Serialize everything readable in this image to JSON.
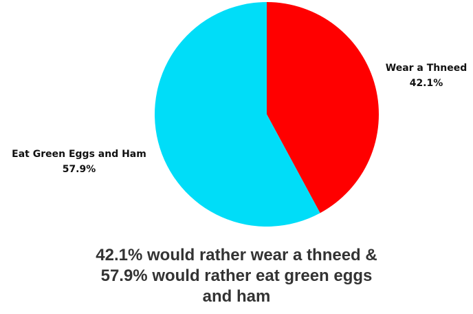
{
  "chart_data": {
    "type": "pie",
    "title": "",
    "slices": [
      {
        "label": "Wear a Thneed",
        "value": 42.1,
        "value_label": "42.1%",
        "color": "#ff0000"
      },
      {
        "label": "Eat Green Eggs and Ham",
        "value": 57.9,
        "value_label": "57.9%",
        "color": "#00ddf8"
      }
    ],
    "start_angle": "12 o'clock",
    "direction": "clockwise"
  },
  "caption": "42.1% would rather wear a thneed & 57.9% would rather eat green eggs and ham"
}
